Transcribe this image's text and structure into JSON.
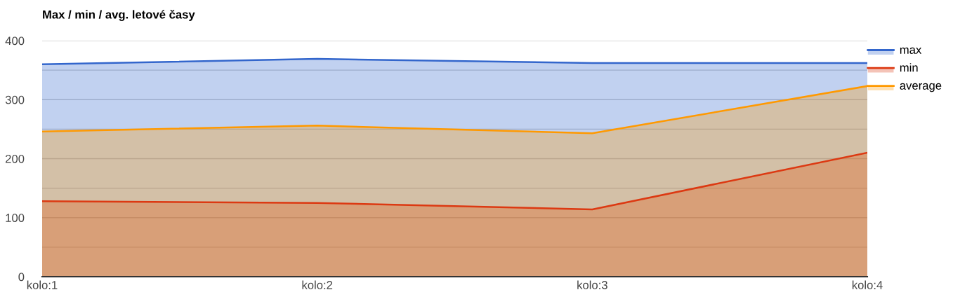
{
  "chart_data": {
    "type": "area",
    "title": "Max / min / avg. letové časy",
    "categories": [
      "kolo:1",
      "kolo:2",
      "kolo:3",
      "kolo:4"
    ],
    "series": [
      {
        "name": "max",
        "color": "#3366cc",
        "values": [
          360,
          369,
          362,
          362
        ]
      },
      {
        "name": "min",
        "color": "#dc3912",
        "values": [
          128,
          125,
          114,
          210
        ]
      },
      {
        "name": "average",
        "color": "#ff9900",
        "values": [
          246,
          256,
          243,
          323
        ]
      }
    ],
    "ylim": [
      0,
      400
    ],
    "yticks": [
      0,
      {
        "value": 50,
        "label": null
      },
      100,
      {
        "value": 150,
        "label": null
      },
      200,
      {
        "value": 250,
        "label": null
      },
      300,
      {
        "value": 350,
        "label": null
      },
      400
    ],
    "grid": "y",
    "legend": "right",
    "marker": "none",
    "line_style": "solid"
  }
}
